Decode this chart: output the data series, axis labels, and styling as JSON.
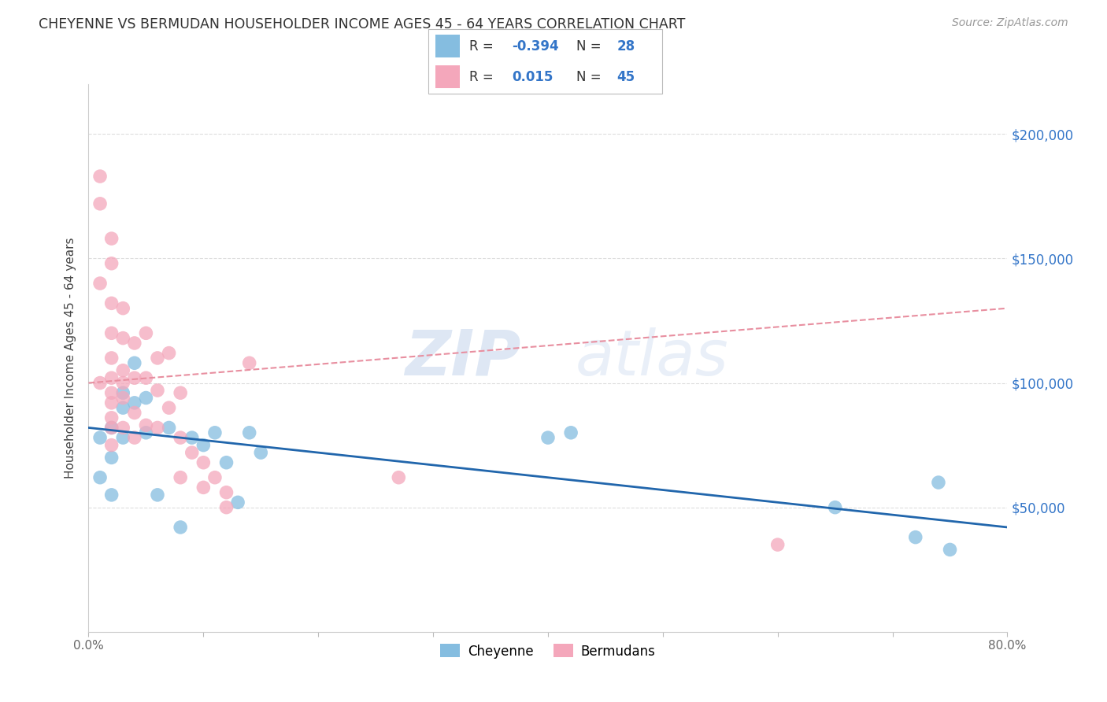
{
  "title": "CHEYENNE VS BERMUDAN HOUSEHOLDER INCOME AGES 45 - 64 YEARS CORRELATION CHART",
  "source": "Source: ZipAtlas.com",
  "ylabel": "Householder Income Ages 45 - 64 years",
  "xlim": [
    0.0,
    0.8
  ],
  "ylim": [
    0,
    220000
  ],
  "xtick_labels": [
    "0.0%",
    "",
    "",
    "",
    "",
    "",
    "",
    "",
    "80.0%"
  ],
  "xtick_vals": [
    0.0,
    0.1,
    0.2,
    0.3,
    0.4,
    0.5,
    0.6,
    0.7,
    0.8
  ],
  "ytick_vals": [
    50000,
    100000,
    150000,
    200000
  ],
  "ytick_labels": [
    "$50,000",
    "$100,000",
    "$150,000",
    "$200,000"
  ],
  "cheyenne_color": "#85bde0",
  "bermuda_color": "#f4a7bb",
  "cheyenne_line_color": "#2166ac",
  "bermuda_line_color": "#e88fa0",
  "watermark_zip": "ZIP",
  "watermark_atlas": "atlas",
  "cheyenne_x": [
    0.01,
    0.01,
    0.02,
    0.02,
    0.02,
    0.03,
    0.03,
    0.03,
    0.04,
    0.04,
    0.05,
    0.05,
    0.06,
    0.07,
    0.08,
    0.09,
    0.1,
    0.11,
    0.12,
    0.13,
    0.14,
    0.15,
    0.4,
    0.42,
    0.65,
    0.72,
    0.74,
    0.75
  ],
  "cheyenne_y": [
    78000,
    62000,
    55000,
    70000,
    82000,
    96000,
    90000,
    78000,
    108000,
    92000,
    94000,
    80000,
    55000,
    82000,
    42000,
    78000,
    75000,
    80000,
    68000,
    52000,
    80000,
    72000,
    78000,
    80000,
    50000,
    38000,
    60000,
    33000
  ],
  "bermuda_x": [
    0.01,
    0.01,
    0.01,
    0.01,
    0.02,
    0.02,
    0.02,
    0.02,
    0.02,
    0.02,
    0.02,
    0.02,
    0.02,
    0.02,
    0.02,
    0.03,
    0.03,
    0.03,
    0.03,
    0.03,
    0.03,
    0.04,
    0.04,
    0.04,
    0.04,
    0.05,
    0.05,
    0.05,
    0.06,
    0.06,
    0.06,
    0.07,
    0.07,
    0.08,
    0.08,
    0.08,
    0.09,
    0.1,
    0.1,
    0.11,
    0.12,
    0.12,
    0.14,
    0.27,
    0.6
  ],
  "bermuda_y": [
    183000,
    172000,
    140000,
    100000,
    158000,
    148000,
    132000,
    120000,
    110000,
    102000,
    96000,
    92000,
    86000,
    82000,
    75000,
    130000,
    118000,
    105000,
    100000,
    94000,
    82000,
    116000,
    102000,
    88000,
    78000,
    120000,
    102000,
    83000,
    110000,
    97000,
    82000,
    112000,
    90000,
    96000,
    78000,
    62000,
    72000,
    68000,
    58000,
    62000,
    56000,
    50000,
    108000,
    62000,
    35000
  ]
}
